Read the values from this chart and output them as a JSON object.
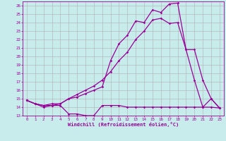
{
  "xlabel": "Windchill (Refroidissement éolien,°C)",
  "bg_color": "#c8ecec",
  "line_color": "#990099",
  "grid_color": "#b0b0b0",
  "xlim": [
    -0.5,
    23.5
  ],
  "ylim": [
    13,
    26.5
  ],
  "xticks": [
    0,
    1,
    2,
    3,
    4,
    5,
    6,
    7,
    8,
    9,
    10,
    11,
    12,
    13,
    14,
    15,
    16,
    17,
    18,
    19,
    20,
    21,
    22,
    23
  ],
  "yticks": [
    13,
    14,
    15,
    16,
    17,
    18,
    19,
    20,
    21,
    22,
    23,
    24,
    25,
    26
  ],
  "line1_x": [
    0,
    1,
    2,
    3,
    4,
    5,
    6,
    7,
    8,
    9,
    10,
    11,
    12,
    13,
    14,
    15,
    16,
    17,
    18,
    19,
    20,
    21,
    22,
    23
  ],
  "line1_y": [
    14.8,
    14.4,
    14.0,
    14.2,
    14.2,
    13.2,
    13.2,
    13.0,
    13.0,
    14.2,
    14.2,
    14.2,
    14.0,
    14.0,
    14.0,
    14.0,
    14.0,
    14.0,
    14.0,
    14.0,
    14.0,
    14.0,
    14.0,
    13.9
  ],
  "line2_x": [
    0,
    1,
    2,
    3,
    4,
    5,
    6,
    7,
    8,
    9,
    10,
    11,
    12,
    13,
    14,
    15,
    16,
    17,
    18,
    19,
    20,
    21,
    22,
    23
  ],
  "line2_y": [
    14.8,
    14.4,
    14.2,
    14.4,
    14.4,
    15.0,
    15.2,
    15.6,
    16.0,
    16.4,
    19.5,
    21.5,
    22.5,
    24.2,
    24.0,
    25.5,
    25.2,
    26.2,
    26.3,
    20.8,
    17.2,
    14.0,
    15.0,
    13.9
  ],
  "line3_x": [
    0,
    1,
    2,
    3,
    4,
    5,
    6,
    7,
    8,
    9,
    10,
    11,
    12,
    13,
    14,
    15,
    16,
    17,
    18,
    19,
    20,
    21,
    22,
    23
  ],
  "line3_y": [
    14.8,
    14.4,
    14.2,
    14.2,
    14.4,
    15.0,
    15.5,
    16.0,
    16.5,
    17.2,
    18.2,
    19.5,
    20.5,
    22.0,
    23.0,
    24.3,
    24.5,
    23.9,
    24.0,
    20.8,
    20.8,
    17.2,
    15.0,
    13.9
  ]
}
